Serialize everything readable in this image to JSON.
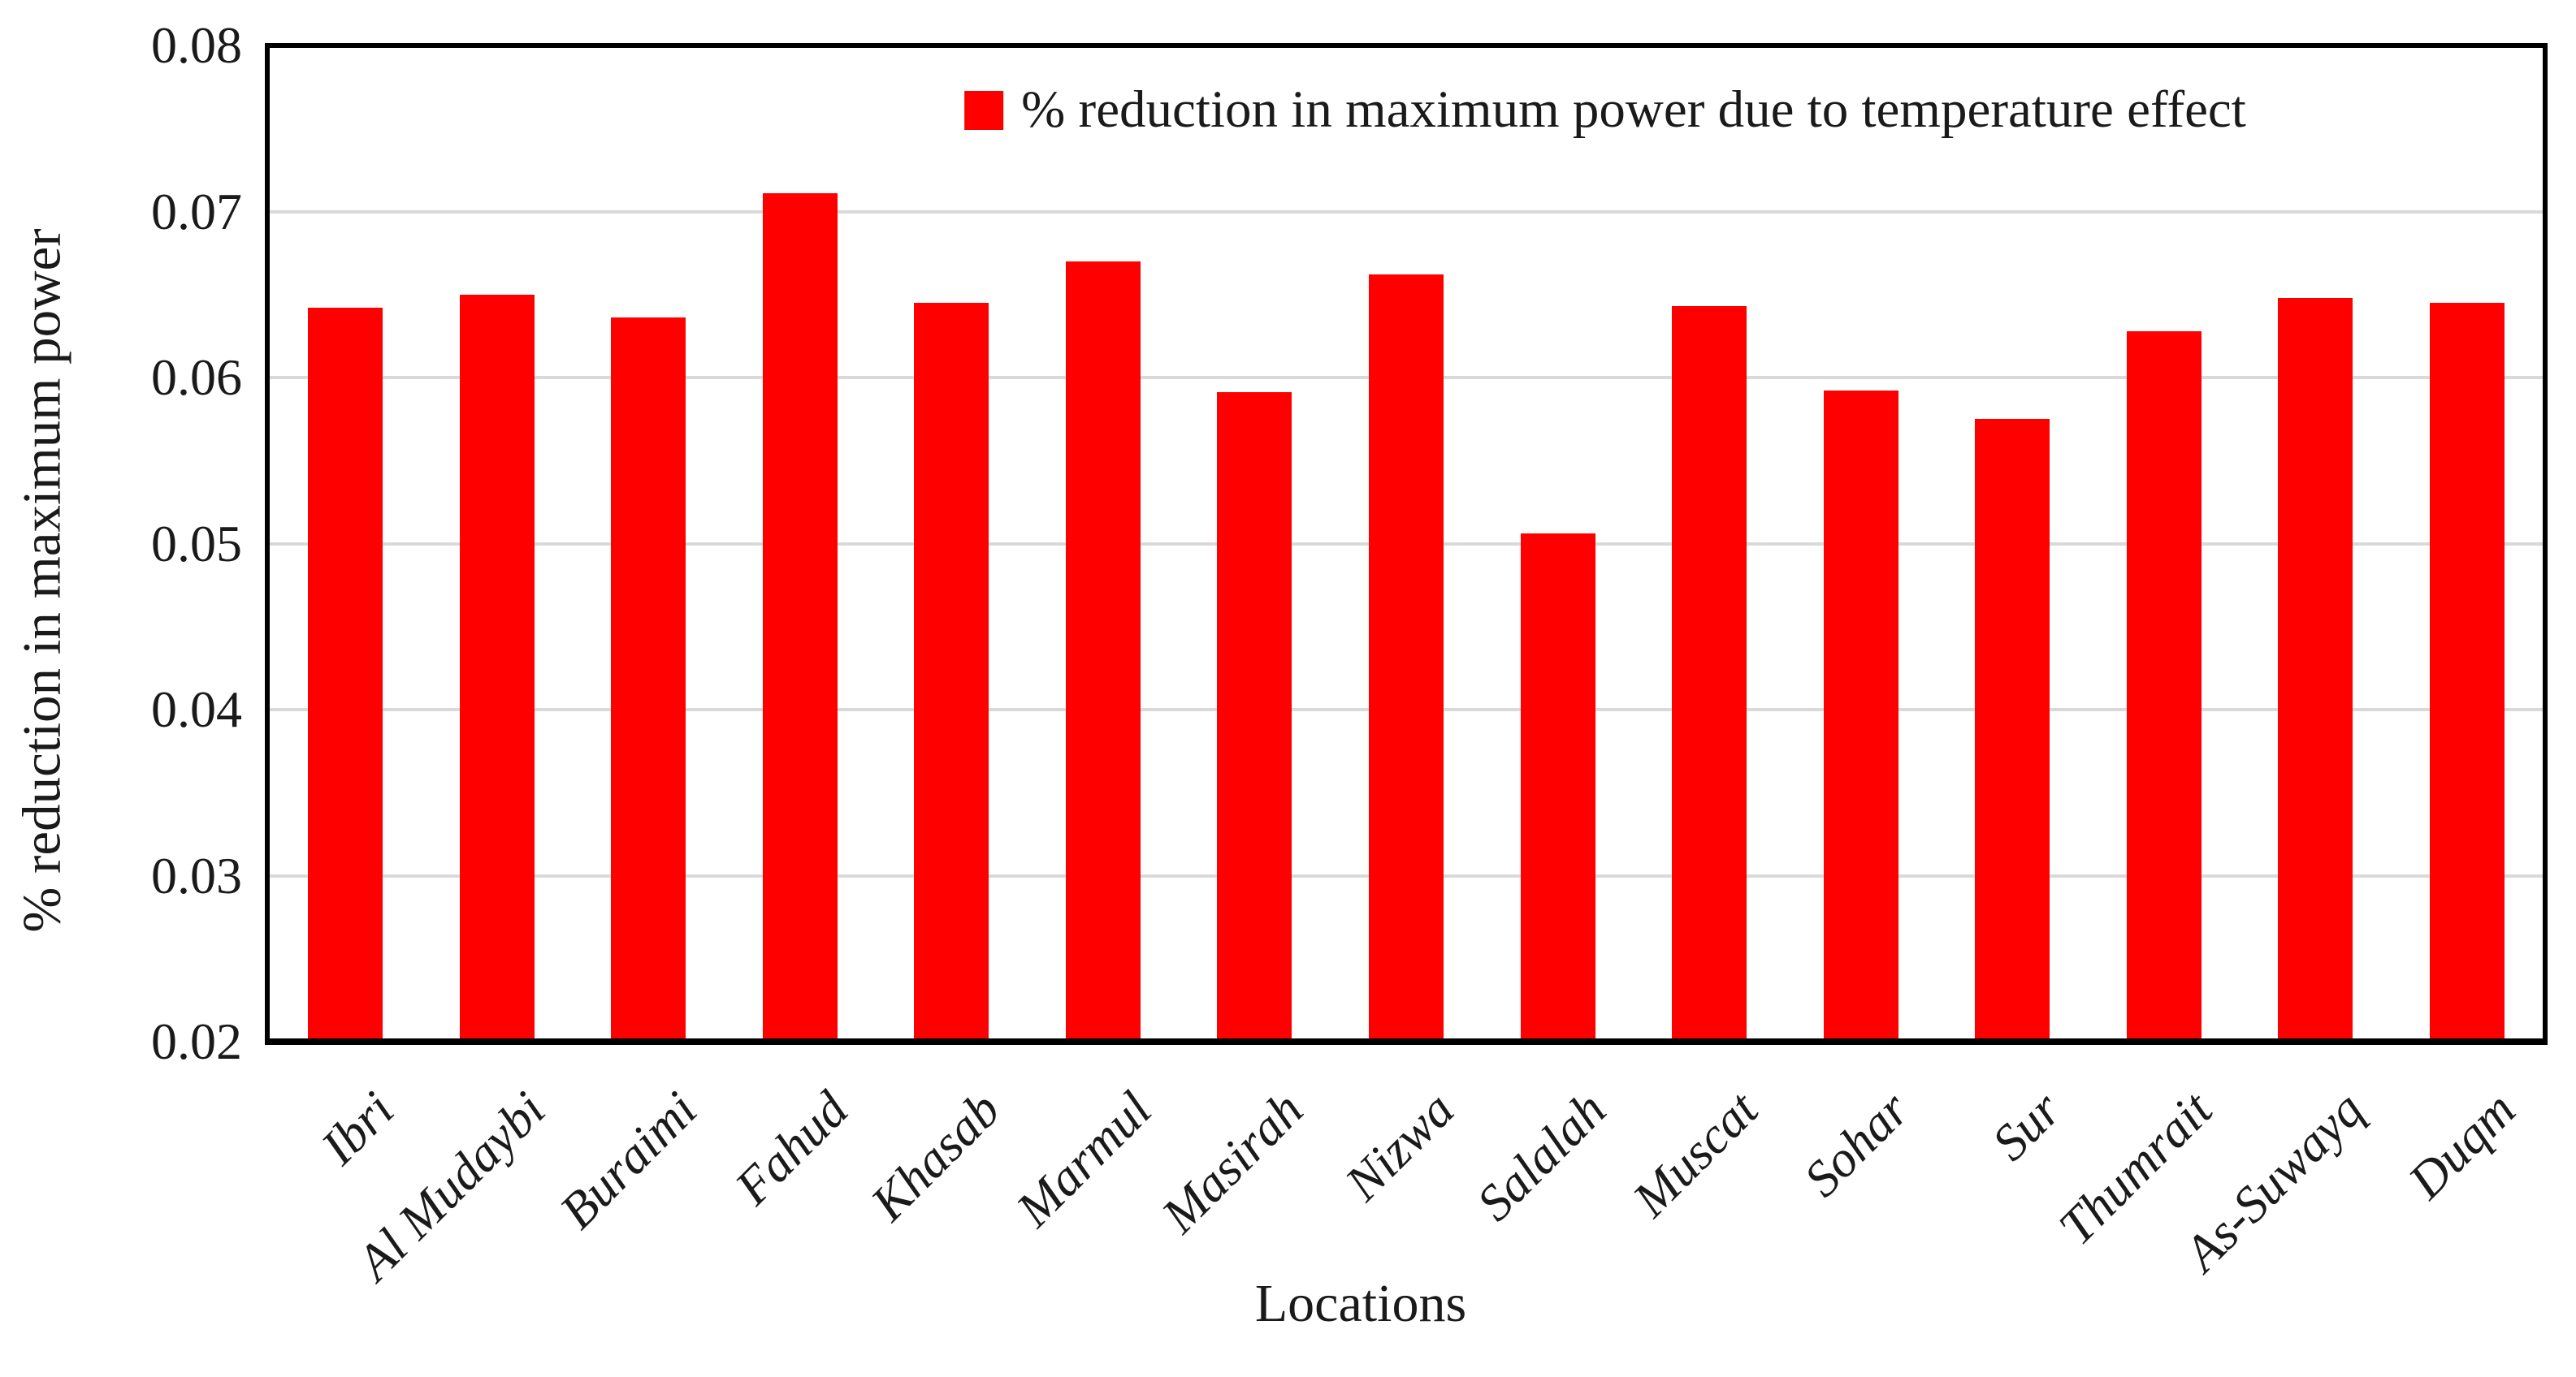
{
  "chart_data": {
    "type": "bar",
    "title": "",
    "categories": [
      "Ibri",
      "Al Mudaybi",
      "Buraimi",
      "Fahud",
      "Khasab",
      "Marmul",
      "Masirah",
      "Nizwa",
      "Salalah",
      "Muscat",
      "Sohar",
      "Sur",
      "Thumrait",
      "As-Suwayq",
      "Duqm"
    ],
    "series": [
      {
        "name": "% reduction in maximum power due to temperature effect",
        "values": [
          0.0642,
          0.065,
          0.0636,
          0.0711,
          0.0645,
          0.067,
          0.0591,
          0.0662,
          0.0506,
          0.0643,
          0.0592,
          0.0575,
          0.0628,
          0.0648,
          0.0645
        ]
      }
    ],
    "xlabel": "Locations",
    "ylabel": "% reduction in maximum power",
    "ylim": [
      0.02,
      0.08
    ],
    "yticks": [
      0.02,
      0.03,
      0.04,
      0.05,
      0.06,
      0.07,
      0.08
    ],
    "ytick_decimals": 2,
    "grid": "horizontal",
    "legend_position": "top-center",
    "colors": {
      "bar": "#FF0000",
      "gridline": "#D9D9D9",
      "axis_frame": "#000000",
      "text": "#1A1A1A"
    }
  }
}
